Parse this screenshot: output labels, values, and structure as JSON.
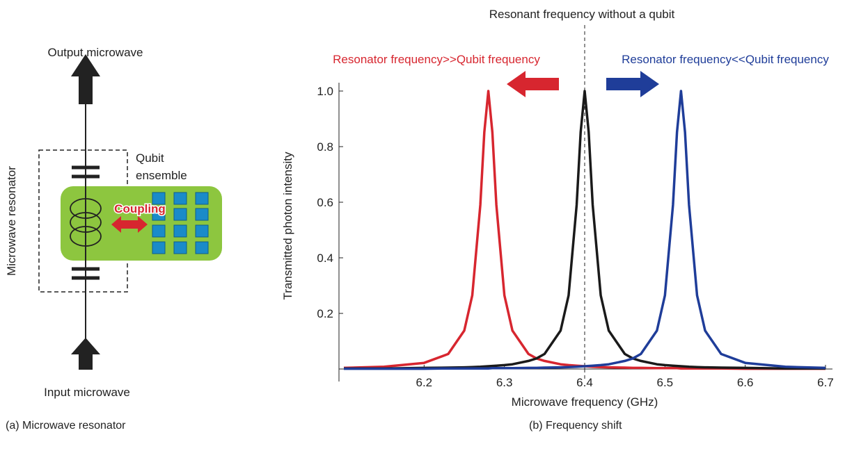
{
  "diagram": {
    "output_label": "Output microwave",
    "input_label": "Input microwave",
    "resonator_label": "Microwave resonator",
    "ensemble_label": [
      "Qubit",
      "ensemble"
    ],
    "coupling_label": "Coupling"
  },
  "captions": [
    "(a) Microwave resonator",
    "(b) Frequency shift"
  ],
  "chart_data": {
    "type": "line",
    "xlabel": "Microwave frequency (GHz)",
    "ylabel": "Transmitted photon intensity",
    "x": [
      6.1,
      6.15,
      6.2,
      6.23,
      6.25,
      6.26,
      6.27,
      6.275,
      6.28,
      6.285,
      6.29,
      6.3,
      6.31,
      6.33,
      6.34,
      6.35,
      6.37,
      6.38,
      6.39,
      6.395,
      6.4,
      6.405,
      6.41,
      6.42,
      6.43,
      6.45,
      6.46,
      6.47,
      6.49,
      6.5,
      6.51,
      6.515,
      6.52,
      6.525,
      6.53,
      6.54,
      6.55,
      6.57,
      6.6,
      6.65,
      6.7
    ],
    "series": [
      {
        "name": "Resonator frequency>>Qubit frequency",
        "color": "#d7262f",
        "values": [
          0.004,
          0.008,
          0.022,
          0.054,
          0.138,
          0.265,
          0.59,
          0.852,
          1,
          0.852,
          0.59,
          0.265,
          0.138,
          0.054,
          0.038,
          0.029,
          0.017,
          0.014,
          0.012,
          0.011,
          0.01,
          0.009,
          0.008,
          0.007,
          0.006,
          0.005,
          0.004,
          0.004,
          0.003,
          0.003,
          0.003,
          0.003,
          0.002,
          0.002,
          0.002,
          0.002,
          0.002,
          0.002,
          0.001,
          0.001,
          0.001
        ]
      },
      {
        "name": "Resonant frequency without a qubit",
        "color": "#1a1a1a",
        "values": [
          0.002,
          0.002,
          0.004,
          0.005,
          0.006,
          0.007,
          0.008,
          0.009,
          0.01,
          0.011,
          0.012,
          0.014,
          0.017,
          0.029,
          0.038,
          0.054,
          0.138,
          0.265,
          0.59,
          0.852,
          1,
          0.852,
          0.59,
          0.265,
          0.138,
          0.054,
          0.038,
          0.029,
          0.017,
          0.014,
          0.012,
          0.011,
          0.01,
          0.009,
          0.008,
          0.007,
          0.006,
          0.005,
          0.004,
          0.002,
          0.002
        ]
      },
      {
        "name": "Resonator frequency<<Qubit frequency",
        "color": "#1f3d99",
        "values": [
          0.001,
          0.001,
          0.001,
          0.002,
          0.002,
          0.002,
          0.002,
          0.002,
          0.002,
          0.003,
          0.003,
          0.003,
          0.003,
          0.004,
          0.004,
          0.005,
          0.006,
          0.007,
          0.008,
          0.009,
          0.01,
          0.011,
          0.012,
          0.014,
          0.017,
          0.029,
          0.038,
          0.054,
          0.138,
          0.265,
          0.59,
          0.852,
          1,
          0.852,
          0.59,
          0.265,
          0.138,
          0.054,
          0.022,
          0.008,
          0.004
        ]
      }
    ],
    "vline": 6.4,
    "xlim": [
      6.1,
      6.7
    ],
    "xticks": [
      6.2,
      6.3,
      6.4,
      6.5,
      6.6,
      6.7
    ],
    "ylim": [
      0,
      1.03
    ],
    "yticks": [
      0.2,
      0.4,
      0.6,
      0.8,
      {
        "value": 1,
        "label": "1.0"
      }
    ]
  }
}
